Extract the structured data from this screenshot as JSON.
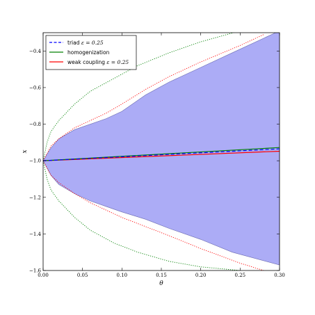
{
  "chart_data": {
    "type": "line",
    "xlabel": "θ",
    "ylabel": "x",
    "xlim": [
      0.0,
      0.3
    ],
    "ylim": [
      -1.6,
      -0.3
    ],
    "xticks": [
      "0.00",
      "0.05",
      "0.10",
      "0.15",
      "0.20",
      "0.25",
      "0.30"
    ],
    "yticks": [
      "−1.6",
      "−1.4",
      "−1.2",
      "−1.0",
      "−0.8",
      "−0.6",
      "−0.4"
    ],
    "legend_position": "top-left",
    "legend": [
      {
        "label": "triad ",
        "math": "ε = 0.25",
        "color": "#0000ff",
        "style": "dashed"
      },
      {
        "label": "homogenization",
        "math": "",
        "color": "#008000",
        "style": "solid"
      },
      {
        "label": "weak coupling ",
        "math": "ε = 0.25",
        "color": "#ff0000",
        "style": "solid"
      }
    ],
    "band": {
      "color": "#8c8cf2",
      "x": [
        0.0,
        0.01,
        0.02,
        0.04,
        0.06,
        0.08,
        0.1,
        0.13,
        0.16,
        0.2,
        0.24,
        0.3
      ],
      "upper": [
        -1.0,
        -0.93,
        -0.88,
        -0.83,
        -0.8,
        -0.77,
        -0.73,
        -0.64,
        -0.57,
        -0.49,
        -0.41,
        -0.29
      ],
      "lower": [
        -1.0,
        -1.08,
        -1.13,
        -1.18,
        -1.22,
        -1.25,
        -1.28,
        -1.32,
        -1.37,
        -1.43,
        -1.5,
        -1.57
      ]
    },
    "series": [
      {
        "name": "triad ε = 0.25",
        "color": "#0000ff",
        "style": "dashed",
        "x": [
          0.0,
          0.3
        ],
        "y": [
          -1.0,
          -0.935
        ]
      },
      {
        "name": "homogenization",
        "color": "#008000",
        "style": "solid",
        "x": [
          0.0,
          0.3
        ],
        "y": [
          -1.0,
          -0.928
        ]
      },
      {
        "name": "weak coupling ε = 0.25",
        "color": "#ff0000",
        "style": "solid",
        "x": [
          0.0,
          0.3
        ],
        "y": [
          -1.0,
          -0.948
        ]
      }
    ],
    "envelopes": [
      {
        "color": "#008000",
        "style": "dotted",
        "x": [
          0.0,
          0.005,
          0.01,
          0.02,
          0.04,
          0.06,
          0.09,
          0.12,
          0.16,
          0.2,
          0.25
        ],
        "upper": [
          -1.0,
          -0.9,
          -0.84,
          -0.78,
          -0.69,
          -0.62,
          -0.55,
          -0.48,
          -0.41,
          -0.35,
          -0.29
        ],
        "lower": [
          -1.0,
          -1.1,
          -1.16,
          -1.22,
          -1.31,
          -1.38,
          -1.45,
          -1.5,
          -1.55,
          -1.58,
          -1.6
        ]
      },
      {
        "color": "#ff0000",
        "style": "dotted",
        "x": [
          0.0,
          0.01,
          0.02,
          0.04,
          0.06,
          0.08,
          0.1,
          0.13,
          0.16,
          0.2,
          0.25,
          0.28
        ],
        "upper": [
          -1.0,
          -0.92,
          -0.88,
          -0.82,
          -0.78,
          -0.74,
          -0.69,
          -0.61,
          -0.54,
          -0.46,
          -0.37,
          -0.31
        ],
        "lower": [
          -1.0,
          -1.08,
          -1.12,
          -1.18,
          -1.23,
          -1.27,
          -1.31,
          -1.36,
          -1.41,
          -1.48,
          -1.56,
          -1.6
        ]
      }
    ]
  }
}
